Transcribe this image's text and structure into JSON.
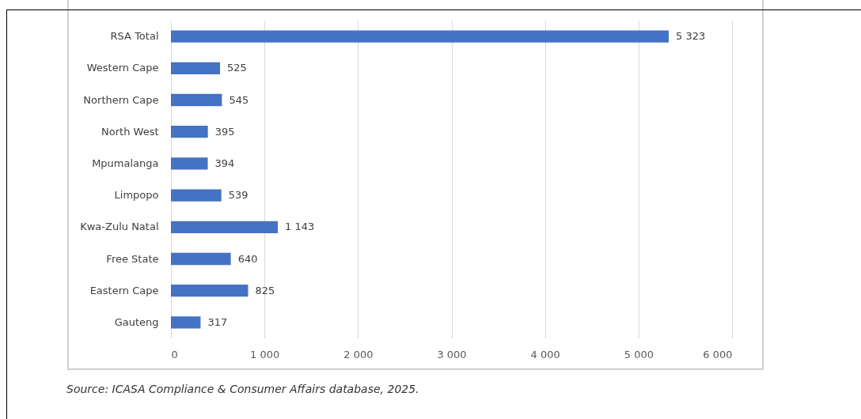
{
  "chart_data": {
    "type": "bar",
    "orientation": "horizontal",
    "categories": [
      "RSA Total",
      "Western Cape",
      "Northern Cape",
      "North West",
      "Mpumalanga",
      "Limpopo",
      "Kwa-Zulu Natal",
      "Free State",
      "Eastern Cape",
      "Gauteng"
    ],
    "values": [
      5323,
      525,
      545,
      395,
      394,
      539,
      1143,
      640,
      825,
      317
    ],
    "value_labels": [
      "5 323",
      "525",
      "545",
      "395",
      "394",
      "539",
      "1 143",
      "640",
      "825",
      "317"
    ],
    "color": "#4472c4",
    "xlim": [
      0,
      6000
    ],
    "xticks": [
      0,
      {
        "value": 1000,
        "label": "1 000"
      },
      {
        "value": 2000,
        "label": "2 000"
      },
      {
        "value": 3000,
        "label": "3 000"
      },
      {
        "value": 4000,
        "label": "4 000"
      },
      {
        "value": 5000,
        "label": "5 000"
      },
      {
        "value": 6000,
        "label": "6 000"
      }
    ],
    "grid": "x",
    "annotations": [
      "Source: ICASA Compliance & Consumer Affairs database, 2025."
    ]
  }
}
